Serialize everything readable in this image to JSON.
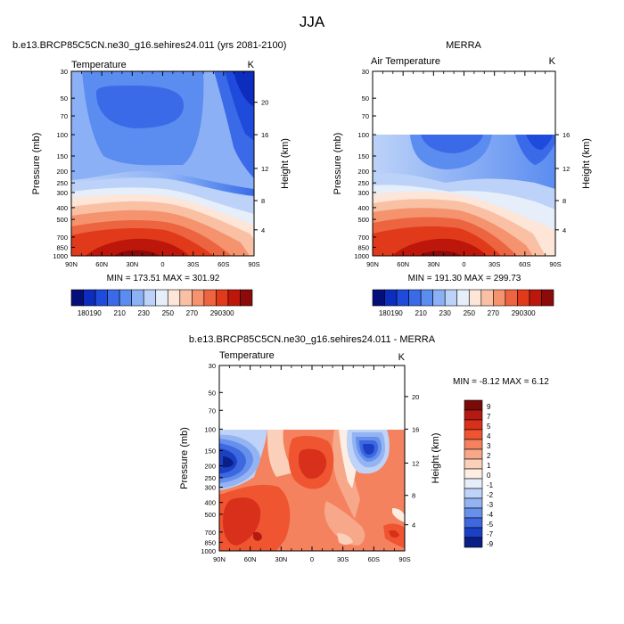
{
  "page_title": "JJA",
  "chart_data": [
    {
      "type": "heatmap",
      "title": "b.e13.BRCP85C5CN.ne30_g16.sehires24.011 (yrs 2081-2100)",
      "left_label": "Temperature",
      "right_label": "K",
      "ylabel": "Pressure (mb)",
      "ylabel_right": "Height (km)",
      "x_ticks": [
        "90N",
        "60N",
        "30N",
        "0",
        "30S",
        "60S",
        "90S"
      ],
      "y_ticks": [
        "30",
        "50",
        "70",
        "100",
        "150",
        "200",
        "250",
        "300",
        "400",
        "500",
        "700",
        "850",
        "1000"
      ],
      "height_ticks": [
        "20",
        "16",
        "12",
        "8",
        "4"
      ],
      "ylim": [
        1000,
        30
      ],
      "top_pressure": 30,
      "min": 173.51,
      "max": 301.92,
      "stats": "MIN = 173.51   MAX = 301.92",
      "colorbar_levels": [
        "180",
        "190",
        "200",
        "210",
        "220",
        "230",
        "240",
        "250",
        "260",
        "270",
        "280",
        "290",
        "300"
      ],
      "colorbar_labels": [
        "180",
        "190",
        "210",
        "230",
        "250",
        "270",
        "290",
        "300"
      ]
    },
    {
      "type": "heatmap",
      "title": "MERRA",
      "left_label": "Air Temperature",
      "right_label": "K",
      "ylabel": "Pressure (mb)",
      "ylabel_right": "Height (km)",
      "x_ticks": [
        "90N",
        "60N",
        "30N",
        "0",
        "30S",
        "60S",
        "90S"
      ],
      "y_ticks": [
        "30",
        "50",
        "70",
        "100",
        "150",
        "200",
        "250",
        "300",
        "400",
        "500",
        "700",
        "850",
        "1000"
      ],
      "height_ticks": [
        "16",
        "12",
        "8",
        "4"
      ],
      "ylim": [
        1000,
        30
      ],
      "top_pressure": 100,
      "min": 191.3,
      "max": 299.73,
      "stats": "MIN = 191.30   MAX = 299.73",
      "colorbar_levels": [
        "180",
        "190",
        "200",
        "210",
        "220",
        "230",
        "240",
        "250",
        "260",
        "270",
        "280",
        "290",
        "300"
      ],
      "colorbar_labels": [
        "180",
        "190",
        "210",
        "230",
        "250",
        "270",
        "290",
        "300"
      ]
    },
    {
      "type": "heatmap",
      "title": "b.e13.BRCP85C5CN.ne30_g16.sehires24.011 - MERRA",
      "left_label": "Temperature",
      "right_label": "K",
      "ylabel": "Pressure (mb)",
      "ylabel_right": "Height (km)",
      "x_ticks": [
        "90N",
        "60N",
        "30N",
        "0",
        "30S",
        "60S",
        "90S"
      ],
      "y_ticks": [
        "30",
        "50",
        "70",
        "100",
        "150",
        "200",
        "250",
        "300",
        "400",
        "500",
        "700",
        "850",
        "1000"
      ],
      "height_ticks": [
        "20",
        "16",
        "12",
        "8",
        "4"
      ],
      "ylim": [
        1000,
        30
      ],
      "top_pressure": 100,
      "min": -8.12,
      "max": 6.12,
      "stats": "MIN = -8.12  MAX =  6.12",
      "colorbar_levels": [
        "9",
        "7",
        "5",
        "4",
        "3",
        "2",
        "1",
        "0",
        "-1",
        "-2",
        "-3",
        "-4",
        "-5",
        "-7",
        "-9"
      ],
      "colorbar_labels": [
        "9",
        "7",
        "5",
        "4",
        "3",
        "2",
        "1",
        "0",
        "-1",
        "-2",
        "-3",
        "-4",
        "-5",
        "-7",
        "-9"
      ]
    }
  ],
  "palettes": {
    "absolute": [
      "#050f78",
      "#0c2dbe",
      "#1e4bdb",
      "#3a6ae8",
      "#5b8cf0",
      "#8cb0f5",
      "#bcd2f8",
      "#e6eef9",
      "#fde5d8",
      "#f9c0a4",
      "#f4936e",
      "#ed6440",
      "#e13a1b",
      "#bd170b",
      "#8b0a0a"
    ],
    "difference": [
      "#7a0a0a",
      "#b31a12",
      "#d9301b",
      "#ef5531",
      "#f5825e",
      "#f7a88a",
      "#fbd0bb",
      "#fdeee4",
      "#e6eefb",
      "#bfd2f7",
      "#93b3f2",
      "#6690ec",
      "#3d68e0",
      "#1c40c4",
      "#0a1f86"
    ]
  }
}
